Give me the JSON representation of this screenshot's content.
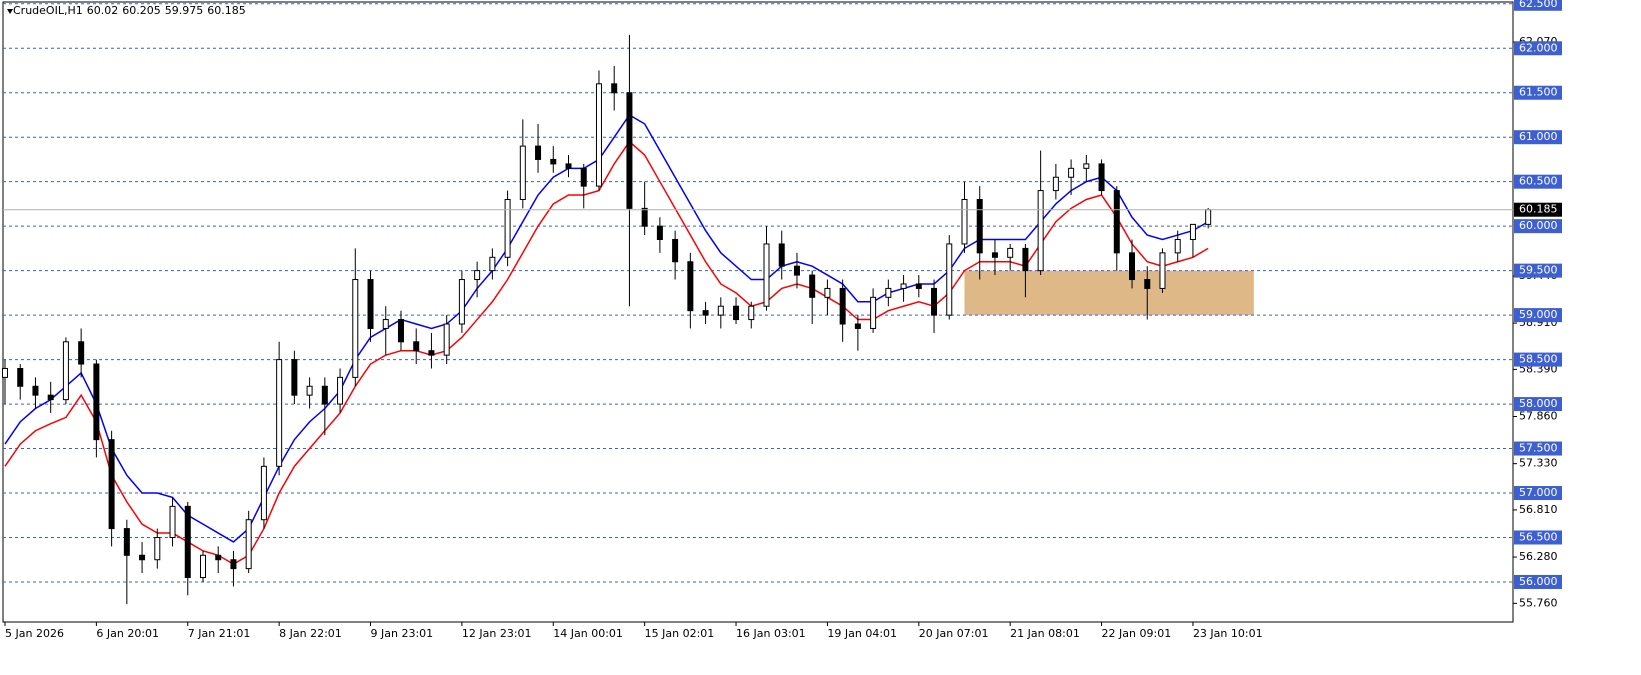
{
  "chart_data": {
    "type": "candlestick",
    "title": "CrudeOIL,H1",
    "categories": [
      "5 Jan 2026",
      null,
      null,
      null,
      null,
      null,
      "6 Jan 20:01",
      null,
      null,
      null,
      null,
      null,
      "7 Jan 21:01",
      null,
      null,
      null,
      null,
      null,
      "8 Jan 22:01",
      null,
      null,
      null,
      null,
      null,
      "9 Jan 23:01",
      null,
      null,
      null,
      null,
      null,
      "12 Jan 23:01",
      null,
      null,
      null,
      null,
      null,
      "14 Jan 00:01",
      null,
      null,
      null,
      null,
      null,
      "15 Jan 02:01",
      null,
      null,
      null,
      null,
      null,
      "16 Jan 03:01",
      null,
      null,
      null,
      null,
      null,
      "19 Jan 04:01",
      null,
      null,
      null,
      null,
      null,
      "20 Jan 07:01",
      null,
      null,
      null,
      null,
      null,
      "21 Jan 08:01",
      null,
      null,
      null,
      null,
      null,
      "22 Jan 09:01",
      null,
      null,
      null,
      null,
      null,
      "23 Jan 10:01",
      null
    ],
    "open": [
      58.3,
      58.4,
      58.2,
      58.1,
      58.05,
      58.7,
      58.45,
      57.6,
      56.6,
      56.3,
      56.25,
      56.5,
      56.85,
      56.05,
      56.3,
      56.25,
      56.15,
      56.7,
      57.3,
      58.5,
      58.1,
      58.2,
      58.0,
      58.3,
      59.4,
      58.85,
      58.95,
      58.7,
      58.6,
      58.55,
      58.9,
      59.4,
      59.5,
      59.65,
      60.3,
      60.9,
      60.75,
      60.7,
      60.65,
      60.45,
      61.6,
      61.5,
      60.2,
      60.0,
      59.85,
      59.6,
      59.05,
      59.0,
      59.1,
      58.95,
      59.1,
      59.8,
      59.55,
      59.45,
      59.2,
      59.3,
      58.9,
      58.85,
      59.2,
      59.3,
      59.35,
      59.3,
      59.0,
      59.8,
      60.3,
      59.7,
      59.65,
      59.75,
      59.5,
      60.4,
      60.55,
      60.65,
      60.7,
      60.4,
      59.7,
      59.4,
      59.3,
      59.7,
      59.85,
      60.02
    ],
    "high": [
      58.5,
      58.45,
      58.3,
      58.25,
      58.75,
      58.85,
      58.5,
      57.7,
      56.7,
      56.45,
      56.6,
      56.95,
      56.9,
      56.35,
      56.4,
      56.35,
      56.8,
      57.4,
      58.7,
      58.6,
      58.3,
      58.3,
      58.4,
      59.75,
      59.5,
      59.1,
      59.05,
      58.85,
      58.8,
      59.0,
      59.5,
      59.6,
      59.75,
      60.4,
      61.2,
      61.15,
      60.9,
      60.8,
      60.7,
      61.75,
      61.8,
      62.15,
      60.5,
      60.1,
      59.95,
      59.7,
      59.15,
      59.2,
      59.2,
      59.15,
      60.0,
      59.95,
      59.7,
      59.5,
      59.4,
      59.4,
      59.0,
      59.3,
      59.4,
      59.45,
      59.45,
      59.4,
      59.9,
      60.5,
      60.45,
      59.85,
      59.8,
      59.8,
      60.85,
      60.7,
      60.75,
      60.8,
      60.75,
      60.45,
      59.85,
      59.55,
      59.75,
      59.95,
      60.0,
      60.205
    ],
    "low": [
      58.0,
      58.05,
      57.95,
      57.9,
      58.0,
      58.3,
      57.4,
      56.4,
      55.75,
      56.1,
      56.15,
      56.4,
      55.85,
      56.0,
      56.1,
      55.95,
      56.1,
      56.6,
      57.2,
      58.0,
      57.95,
      57.65,
      57.9,
      58.2,
      58.7,
      58.55,
      58.6,
      58.45,
      58.4,
      58.45,
      58.8,
      59.2,
      59.4,
      59.55,
      60.2,
      60.6,
      60.6,
      60.55,
      60.2,
      60.4,
      61.3,
      59.1,
      59.9,
      59.7,
      59.4,
      58.85,
      58.9,
      58.85,
      58.9,
      58.85,
      59.05,
      59.4,
      59.3,
      58.9,
      59.0,
      58.7,
      58.6,
      58.8,
      59.1,
      59.15,
      59.2,
      58.8,
      58.95,
      59.7,
      59.4,
      59.45,
      59.5,
      59.2,
      59.45,
      60.3,
      60.35,
      60.5,
      60.35,
      59.5,
      59.3,
      58.95,
      59.25,
      59.6,
      59.65,
      59.975
    ],
    "close": [
      58.4,
      58.2,
      58.1,
      58.05,
      58.7,
      58.45,
      57.6,
      56.6,
      56.3,
      56.25,
      56.5,
      56.85,
      56.05,
      56.3,
      56.25,
      56.15,
      56.7,
      57.3,
      58.5,
      58.1,
      58.2,
      58.0,
      58.3,
      59.4,
      58.85,
      58.95,
      58.7,
      58.6,
      58.55,
      58.9,
      59.4,
      59.5,
      59.65,
      60.3,
      60.9,
      60.75,
      60.7,
      60.65,
      60.45,
      61.6,
      61.5,
      60.2,
      60.0,
      59.85,
      59.6,
      59.05,
      59.0,
      59.1,
      58.95,
      59.1,
      59.8,
      59.55,
      59.45,
      59.2,
      59.3,
      58.9,
      58.85,
      59.2,
      59.3,
      59.35,
      59.3,
      59.0,
      59.8,
      60.3,
      59.7,
      59.65,
      59.75,
      59.5,
      60.4,
      60.55,
      60.65,
      60.7,
      60.4,
      59.7,
      59.4,
      59.3,
      59.7,
      59.85,
      60.02,
      60.185
    ],
    "overlays": [
      {
        "color": "#0000ff",
        "values": [
          57.55,
          57.8,
          57.95,
          58.05,
          58.2,
          58.35,
          58.0,
          57.5,
          57.2,
          57.0,
          57.0,
          56.95,
          56.75,
          56.65,
          56.55,
          56.45,
          56.6,
          56.95,
          57.3,
          57.6,
          57.8,
          57.95,
          58.15,
          58.5,
          58.75,
          58.85,
          58.95,
          58.9,
          58.85,
          58.9,
          59.05,
          59.3,
          59.5,
          59.75,
          60.05,
          60.35,
          60.55,
          60.65,
          60.65,
          60.75,
          61.0,
          61.25,
          61.15,
          60.85,
          60.55,
          60.25,
          59.95,
          59.7,
          59.55,
          59.4,
          59.4,
          59.55,
          59.6,
          59.55,
          59.45,
          59.35,
          59.15,
          59.15,
          59.25,
          59.3,
          59.35,
          59.35,
          59.5,
          59.75,
          59.85,
          59.85,
          59.85,
          59.85,
          60.05,
          60.25,
          60.4,
          60.5,
          60.55,
          60.4,
          60.1,
          59.9,
          59.85,
          59.9,
          59.95,
          60.05
        ]
      },
      {
        "color": "#ff0000",
        "values": [
          57.3,
          57.55,
          57.7,
          57.78,
          57.85,
          58.1,
          57.8,
          57.2,
          56.9,
          56.65,
          56.55,
          56.55,
          56.45,
          56.35,
          56.3,
          56.2,
          56.3,
          56.6,
          57.0,
          57.3,
          57.5,
          57.7,
          57.9,
          58.2,
          58.45,
          58.55,
          58.6,
          58.6,
          58.55,
          58.6,
          58.75,
          58.95,
          59.15,
          59.4,
          59.7,
          60.0,
          60.25,
          60.35,
          60.35,
          60.4,
          60.7,
          60.95,
          60.8,
          60.5,
          60.2,
          59.9,
          59.6,
          59.35,
          59.25,
          59.1,
          59.15,
          59.3,
          59.35,
          59.3,
          59.2,
          59.1,
          58.95,
          58.95,
          59.05,
          59.1,
          59.15,
          59.1,
          59.25,
          59.5,
          59.6,
          59.6,
          59.6,
          59.55,
          59.8,
          60.05,
          60.2,
          60.3,
          60.35,
          60.1,
          59.8,
          59.6,
          59.55,
          59.6,
          59.65,
          59.75
        ]
      }
    ],
    "bull_color": "#ffffff",
    "bear_color": "#000000",
    "ylim": [
      55.55,
      62.52
    ],
    "yticks": [
      {
        "value": 62.07,
        "label": "62.070"
      },
      {
        "value": 59.44,
        "label": "59.440"
      },
      {
        "value": 58.91,
        "label": "58.910"
      },
      {
        "value": 58.39,
        "label": "58.390"
      },
      {
        "value": 57.86,
        "label": "57.860"
      },
      {
        "value": 57.33,
        "label": "57.330"
      },
      {
        "value": 56.81,
        "label": "56.810"
      },
      {
        "value": 56.28,
        "label": "56.280"
      },
      {
        "value": 55.76,
        "label": "55.760"
      }
    ],
    "levels": [
      {
        "value": 62.5,
        "label": "62.500"
      },
      {
        "value": 62.0,
        "label": "62.000"
      },
      {
        "value": 61.5,
        "label": "61.500"
      },
      {
        "value": 61.0,
        "label": "61.000"
      },
      {
        "value": 60.5,
        "label": "60.500"
      },
      {
        "value": 60.0,
        "label": "60.000"
      },
      {
        "value": 59.5,
        "label": "59.500"
      },
      {
        "value": 59.0,
        "label": "59.000"
      },
      {
        "value": 58.5,
        "label": "58.500"
      },
      {
        "value": 58.0,
        "label": "58.000"
      },
      {
        "value": 57.5,
        "label": "57.500"
      },
      {
        "value": 57.0,
        "label": "57.000"
      },
      {
        "value": 56.5,
        "label": "56.500"
      },
      {
        "value": 56.0,
        "label": "56.000"
      }
    ],
    "level_color": "#3d5fcf",
    "zone": {
      "x": [
        63,
        82
      ],
      "y": [
        59.0,
        59.5
      ],
      "color": "#deb887"
    }
  }
}
